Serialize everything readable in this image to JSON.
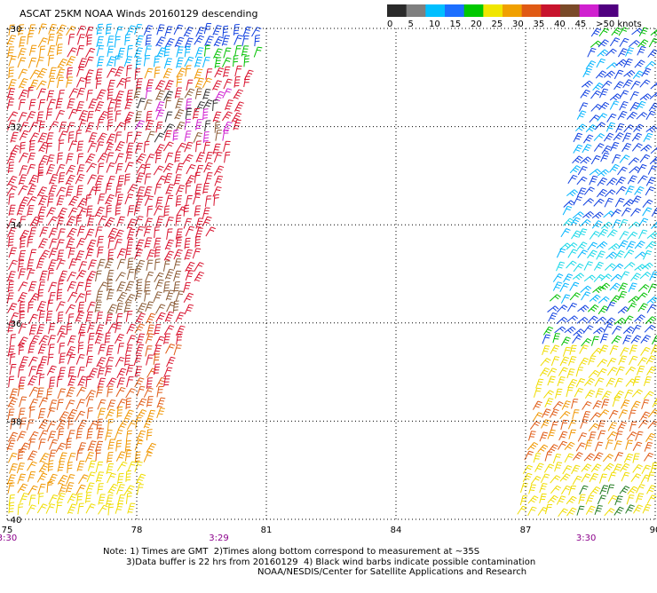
{
  "header": {
    "title": "ASCAT 25KM NOAA Winds 20160129 descending"
  },
  "legend": {
    "labels": [
      "0",
      "5",
      "10",
      "15",
      "20",
      "25",
      "30",
      "35",
      "40",
      "45",
      ">50 knots"
    ],
    "colors": [
      "#2a2a2a",
      "#7f7f7f",
      "#00bfff",
      "#1c6fff",
      "#00c800",
      "#f0e600",
      "#f0a000",
      "#e05a14",
      "#c8142d",
      "#7a4a28",
      "#d020d0",
      "#500080"
    ]
  },
  "notes": {
    "line1": "Note: 1) Times are GMT  2)Times along bottom correspond to measurement at ~35S",
    "line2": "3)Data buffer is 22 hrs from 20160129  4) Black wind barbs indicate possible contamination",
    "line3": "NOAA/NESDIS/Center for Satellite Applications and Research"
  },
  "chart_data": {
    "type": "wind-barb map",
    "title": "ASCAT 25KM NOAA Winds 20160129 descending",
    "x_axis": {
      "ticks": [
        "75",
        "78",
        "81",
        "84",
        "87",
        "90"
      ],
      "range": [
        75,
        90
      ]
    },
    "y_axis": {
      "ticks": [
        "-30",
        "-32",
        "-34",
        "-36",
        "-38",
        "-40"
      ],
      "range": [
        -40,
        -30
      ]
    },
    "grid": true,
    "time_labels": [
      {
        "text": "3:30",
        "lon": 75
      },
      {
        "text": "3:29",
        "lon": 79.9
      },
      {
        "text": "3:30",
        "lon": 88.4
      }
    ],
    "time_label_color": "#8b008b",
    "units": "knots"
  }
}
